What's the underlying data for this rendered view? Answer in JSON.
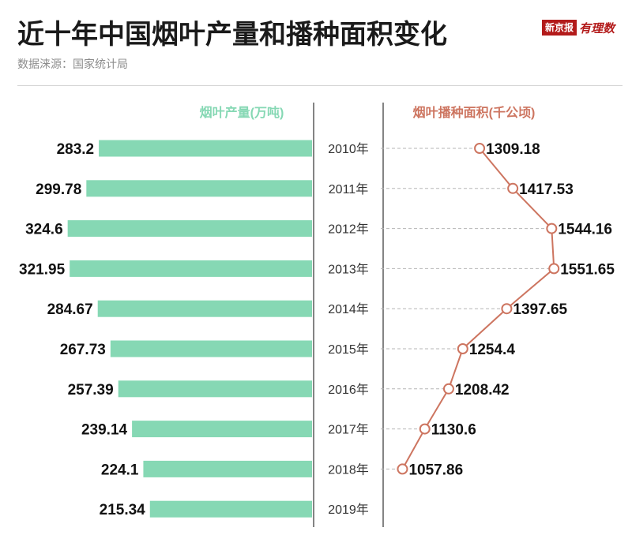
{
  "title": "近十年中国烟叶产量和播种面积变化",
  "source": "数据涞源：国家统计局",
  "logo": {
    "brand": "新京报",
    "brand2": "有理数"
  },
  "colors": {
    "bar": "#86d8b4",
    "line": "#cd7560",
    "divider": "#333333",
    "dash": "#b5b5b5"
  },
  "chart_data": [
    {
      "type": "bar",
      "orientation": "horizontal",
      "title": "烟叶产量(万吨)",
      "categories": [
        "2010年",
        "2011年",
        "2012年",
        "2013年",
        "2014年",
        "2015年",
        "2016年",
        "2017年",
        "2018年",
        "2019年"
      ],
      "values": [
        283.2,
        299.78,
        324.6,
        321.95,
        284.67,
        267.73,
        257.39,
        239.14,
        224.1,
        215.34
      ],
      "value_labels": [
        "283.2",
        "299.78",
        "324.6",
        "321.95",
        "284.67",
        "267.73",
        "257.39",
        "239.14",
        "224.1",
        "215.34"
      ]
    },
    {
      "type": "line",
      "title": "烟叶播种面积(千公顷)",
      "categories": [
        "2010年",
        "2011年",
        "2012年",
        "2013年",
        "2014年",
        "2015年",
        "2016年",
        "2017年",
        "2018年"
      ],
      "values": [
        1309.18,
        1417.53,
        1544.16,
        1551.65,
        1397.65,
        1254.4,
        1208.42,
        1130.6,
        1057.86
      ],
      "value_labels": [
        "1309.18",
        "1417.53",
        "1544.16",
        "1551.65",
        "1397.65",
        "1254.4",
        "1208.42",
        "1130.6",
        "1057.86"
      ]
    }
  ]
}
